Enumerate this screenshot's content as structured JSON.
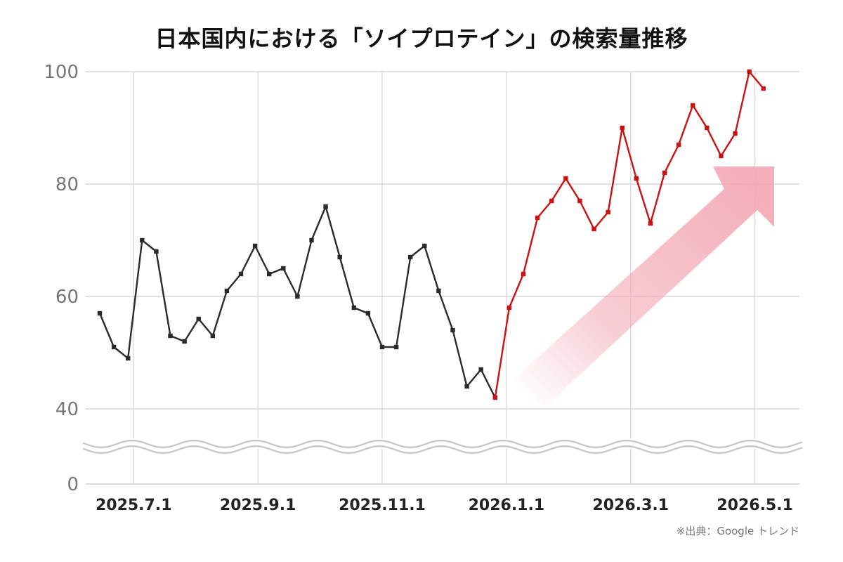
{
  "chart_data": {
    "type": "line",
    "title": "日本国内における「ソイプロテイン」の検索量推移",
    "source": "※出典：Google トレンド",
    "xlabel": "",
    "ylabel": "",
    "ylim": [
      0,
      100
    ],
    "axis_break": [
      0,
      40
    ],
    "yticks": [
      "0",
      "40",
      "60",
      "80",
      "100"
    ],
    "x_tick_labels": [
      {
        "label": "2025.7.1",
        "index": 2.4
      },
      {
        "label": "2025.9.1",
        "index": 11.2
      },
      {
        "label": "2025.11.1",
        "index": 20.0
      },
      {
        "label": "2026.1.1",
        "index": 28.8
      },
      {
        "label": "2026.3.1",
        "index": 37.6
      },
      {
        "label": "2026.5.1",
        "index": 46.4
      }
    ],
    "grid": true,
    "legend": "none",
    "colors": {
      "before": "#2b2b2b",
      "after": "#cc1111",
      "trend_arrow": "#f2a7b4",
      "grid": "#d9d4da"
    },
    "highlight_from_index": 29,
    "trend_arrow": true,
    "values": [
      57,
      51,
      49,
      70,
      68,
      53,
      52,
      56,
      53,
      61,
      64,
      69,
      64,
      65,
      60,
      70,
      76,
      67,
      58,
      57,
      51,
      51,
      67,
      69,
      61,
      54,
      44,
      47,
      42,
      58,
      64,
      74,
      77,
      81,
      77,
      72,
      75,
      90,
      81,
      73,
      82,
      87,
      94,
      90,
      85,
      89,
      100,
      97
    ]
  }
}
